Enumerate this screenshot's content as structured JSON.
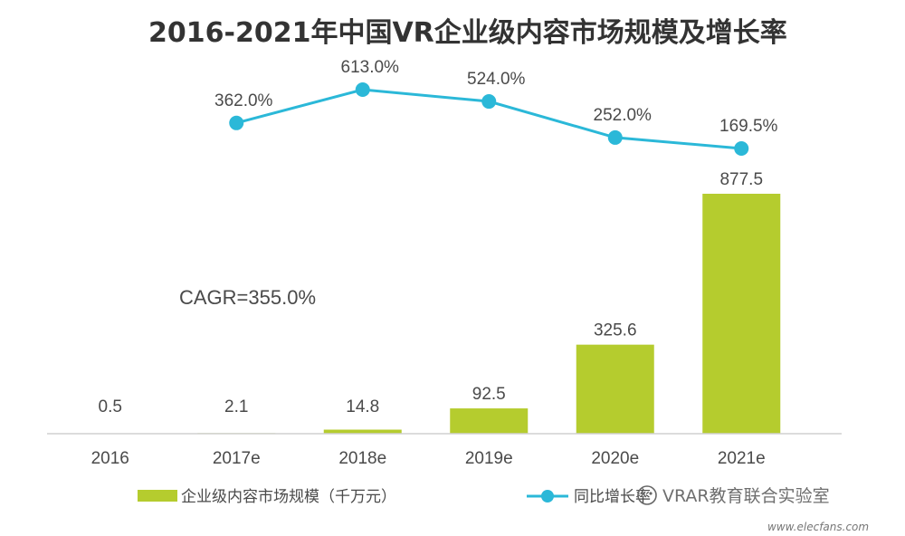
{
  "chart_data": {
    "type": "bar",
    "title": "2016-2021年中国VR企业级内容市场规模及增长率",
    "categories": [
      "2016",
      "2017e",
      "2018e",
      "2019e",
      "2020e",
      "2021e"
    ],
    "series": [
      {
        "name": "企业级内容市场规模（千万元）",
        "type": "bar",
        "values": [
          0.5,
          2.1,
          14.8,
          92.5,
          325.6,
          877.5
        ],
        "labels": [
          "0.5",
          "2.1",
          "14.8",
          "92.5",
          "325.6",
          "877.5"
        ],
        "color": "#b5cc2e"
      },
      {
        "name": "同比增长率",
        "type": "line",
        "values": [
          null,
          362.0,
          613.0,
          524.0,
          252.0,
          169.5
        ],
        "labels": [
          "",
          "362.0%",
          "613.0%",
          "524.0%",
          "252.0%",
          "169.5%"
        ],
        "color": "#2bb8d8"
      }
    ],
    "annotations": [
      "CAGR=355.0%"
    ],
    "legend": "bottom",
    "grid": false
  },
  "legend": {
    "bar_label": "企业级内容市场规模（千万元）",
    "line_label": "同比增长率"
  },
  "watermark": {
    "text": "VRAR教育联合实验室",
    "sub": "www.elecfans.com"
  }
}
